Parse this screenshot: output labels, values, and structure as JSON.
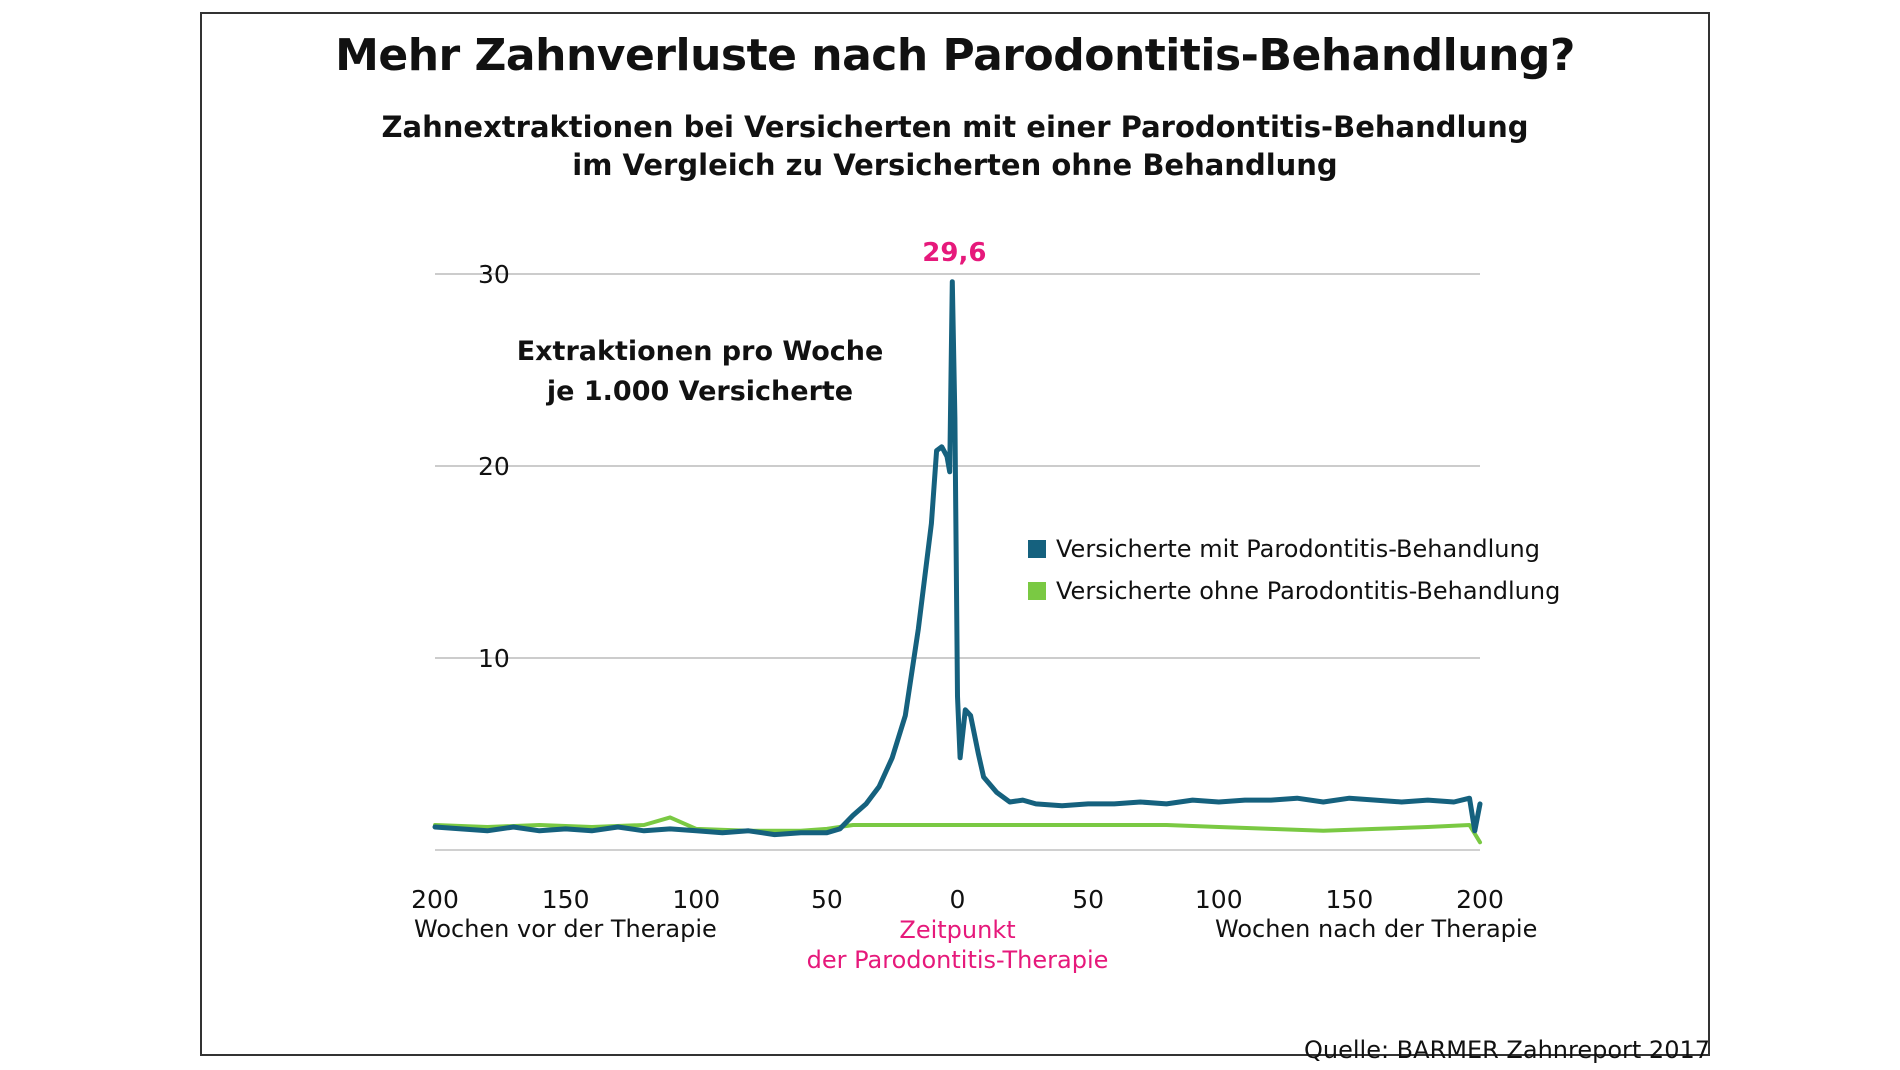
{
  "header": {
    "title": "Mehr Zahnverluste nach Parodontitis-Behandlung?",
    "subtitle_line1": "Zahnextraktionen bei Versicherten mit einer Parodontitis-Behandlung",
    "subtitle_line2": "im Vergleich zu Versicherten ohne Behandlung"
  },
  "source": "Quelle: BARMER Zahnreport 2017",
  "colors": {
    "treated": "#15617e",
    "untreated": "#7ac943",
    "accent": "#e6197b",
    "grid": "#cccccc"
  },
  "chart_data": {
    "type": "line",
    "ylabel_line1": "Extraktionen pro Woche",
    "ylabel_line2": "je 1.000 Versicherte",
    "ylim": [
      0,
      30
    ],
    "yticks": [
      10,
      20,
      30
    ],
    "xlim": [
      -200,
      200
    ],
    "xtick_labels": [
      {
        "x": -200,
        "label": "200"
      },
      {
        "x": -150,
        "label": "150"
      },
      {
        "x": -100,
        "label": "100"
      },
      {
        "x": -50,
        "label": "50"
      },
      {
        "x": 0,
        "label": "0"
      },
      {
        "x": 50,
        "label": "50"
      },
      {
        "x": 100,
        "label": "100"
      },
      {
        "x": 150,
        "label": "150"
      },
      {
        "x": 200,
        "label": "200"
      }
    ],
    "x_caption_left": "Wochen vor der Therapie",
    "x_caption_right": "Wochen nach der Therapie",
    "x_caption_center_line1": "Zeitpunkt",
    "x_caption_center_line2": "der Parodontitis-Therapie",
    "peak_label": "29,6",
    "peak": {
      "x": -2,
      "y": 29.6
    },
    "grid": true,
    "legend_position": "right",
    "series": [
      {
        "name": "Versicherte mit Parodontitis-Behandlung",
        "x": [
          -200,
          -190,
          -180,
          -170,
          -160,
          -150,
          -140,
          -130,
          -120,
          -110,
          -100,
          -90,
          -80,
          -70,
          -60,
          -50,
          -45,
          -40,
          -35,
          -30,
          -25,
          -20,
          -15,
          -10,
          -8,
          -6,
          -4,
          -3,
          -2,
          -1,
          0,
          1,
          3,
          5,
          8,
          10,
          15,
          20,
          25,
          30,
          40,
          50,
          60,
          70,
          80,
          90,
          100,
          110,
          120,
          130,
          140,
          150,
          160,
          170,
          180,
          190,
          196,
          198,
          200
        ],
        "values": [
          1.2,
          1.1,
          1.0,
          1.2,
          1.0,
          1.1,
          1.0,
          1.2,
          1.0,
          1.1,
          1.0,
          0.9,
          1.0,
          0.8,
          0.9,
          0.9,
          1.1,
          1.8,
          2.4,
          3.3,
          4.8,
          7.0,
          11.5,
          17.0,
          20.8,
          21.0,
          20.5,
          19.7,
          29.6,
          22.5,
          8.0,
          4.8,
          7.3,
          7.0,
          5.0,
          3.8,
          3.0,
          2.5,
          2.6,
          2.4,
          2.3,
          2.4,
          2.4,
          2.5,
          2.4,
          2.6,
          2.5,
          2.6,
          2.6,
          2.7,
          2.5,
          2.7,
          2.6,
          2.5,
          2.6,
          2.5,
          2.7,
          1.0,
          2.4
        ]
      },
      {
        "name": "Versicherte ohne Parodontitis-Behandlung",
        "x": [
          -200,
          -180,
          -160,
          -140,
          -120,
          -110,
          -100,
          -80,
          -60,
          -50,
          -40,
          -20,
          0,
          20,
          40,
          60,
          80,
          100,
          120,
          140,
          160,
          180,
          196,
          200
        ],
        "values": [
          1.3,
          1.2,
          1.3,
          1.2,
          1.3,
          1.7,
          1.1,
          1.0,
          1.0,
          1.1,
          1.3,
          1.3,
          1.3,
          1.3,
          1.3,
          1.3,
          1.3,
          1.2,
          1.1,
          1.0,
          1.1,
          1.2,
          1.3,
          0.4
        ]
      }
    ]
  }
}
